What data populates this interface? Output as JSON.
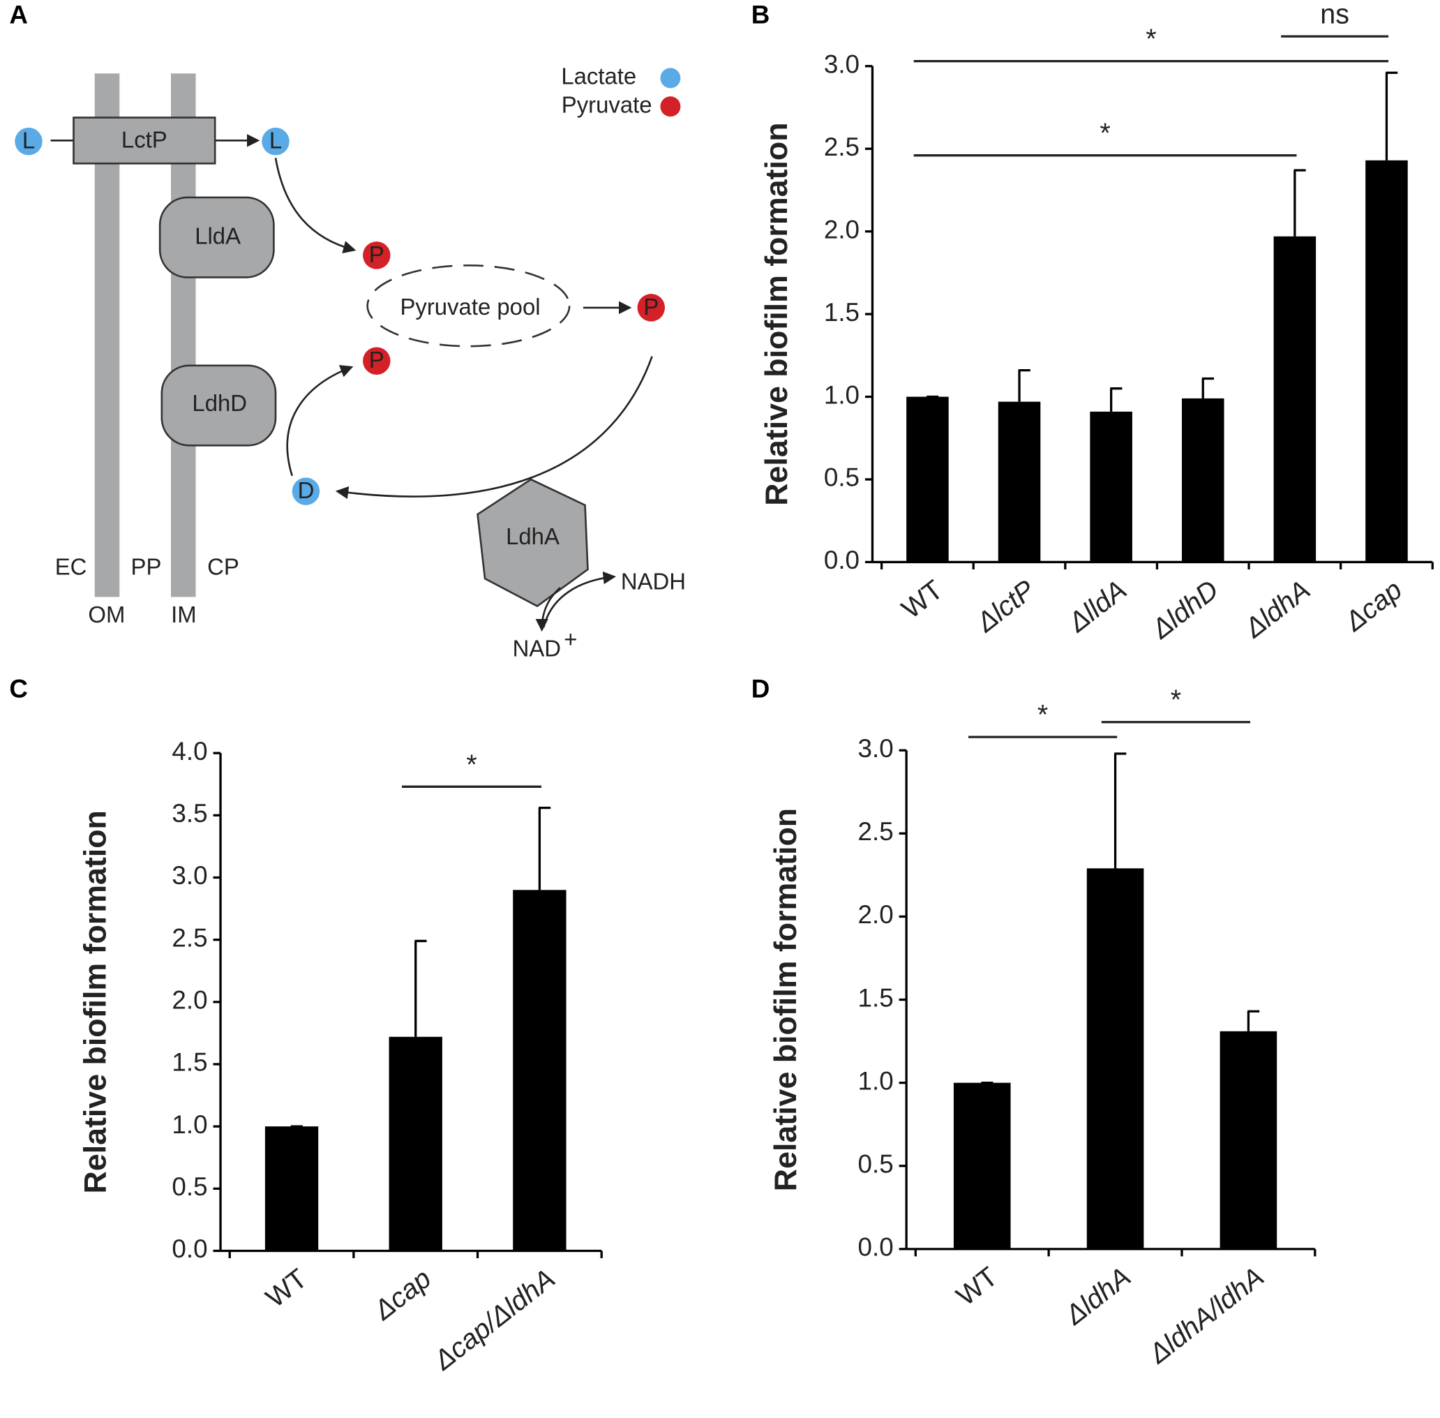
{
  "diagram": {
    "panel_label": "A",
    "legend": [
      "Lactate",
      "Pyruvate"
    ],
    "transporter": "LctP",
    "enzymes": [
      "LldA",
      "LdhD",
      "LdhA"
    ],
    "lactate_marks": [
      "L",
      "L",
      "D"
    ],
    "pyruvate_marks": [
      "P",
      "P",
      "P"
    ],
    "pool": "Pyruvate pool",
    "compartments": [
      "EC",
      "PP",
      "CP"
    ],
    "membranes": [
      "OM",
      "IM"
    ],
    "cofactors": [
      "NADH",
      "NAD"
    ],
    "cofactor_charge": "+"
  },
  "chart_data": [
    {
      "type": "bar",
      "panel_label": "B",
      "ylabel": "Relative biofilm formation",
      "categories": [
        "WT",
        "ΔlctP",
        "ΔlldA",
        "ΔldhD",
        "ΔldhA",
        "Δcap"
      ],
      "values": [
        1.0,
        0.97,
        0.91,
        0.99,
        1.97,
        2.43
      ],
      "errors": [
        0,
        0.19,
        0.14,
        0.12,
        0.4,
        0.53
      ],
      "color": "#000000",
      "ylim": [
        0,
        3
      ],
      "yticks": [
        {
          "value": 0,
          "label": "0.0"
        },
        0.5,
        {
          "value": 1,
          "label": "1.0"
        },
        1.5,
        {
          "value": 2,
          "label": "2.0"
        },
        2.5,
        {
          "value": 3,
          "label": "3.0"
        }
      ],
      "annotations": [
        {
          "text": "*",
          "from": 0,
          "to": 5,
          "y": 3.03
        },
        {
          "text": "ns",
          "from": 4,
          "to": 5,
          "y": 3.18
        },
        {
          "text": "*",
          "from": 0,
          "to": 4,
          "y": 2.46
        }
      ]
    },
    {
      "type": "bar",
      "panel_label": "C",
      "ylabel": "Relative biofilm formation",
      "categories": [
        "WT",
        "Δcap",
        "Δcap/ΔldhA"
      ],
      "values": [
        1.0,
        1.72,
        2.9
      ],
      "errors": [
        0,
        0.77,
        0.66
      ],
      "color": "#000000",
      "ylim": [
        0,
        4
      ],
      "yticks": [
        {
          "value": 0,
          "label": "0.0"
        },
        0.5,
        {
          "value": 1,
          "label": "1.0"
        },
        1.5,
        {
          "value": 2,
          "label": "2.0"
        },
        2.5,
        {
          "value": 3,
          "label": "3.0"
        },
        3.5,
        {
          "value": 4,
          "label": "4.0"
        }
      ],
      "annotations": [
        {
          "text": "*",
          "from": 1,
          "to": 2,
          "y": 3.73
        }
      ]
    },
    {
      "type": "bar",
      "panel_label": "D",
      "ylabel": "Relative biofilm formation",
      "categories": [
        "WT",
        "ΔldhA",
        "ΔldhA/ldhA"
      ],
      "values": [
        1.0,
        2.29,
        1.31
      ],
      "errors": [
        0,
        0.69,
        0.12
      ],
      "color": "#000000",
      "ylim": [
        0,
        3
      ],
      "yticks": [
        {
          "value": 0,
          "label": "0.0"
        },
        0.5,
        {
          "value": 1,
          "label": "1.0"
        },
        1.5,
        {
          "value": 2,
          "label": "2.0"
        },
        2.5,
        {
          "value": 3,
          "label": "3.0"
        }
      ],
      "annotations": [
        {
          "text": "*",
          "from": 0,
          "to": 1,
          "y": 3.08
        },
        {
          "text": "*",
          "from": 1,
          "to": 2,
          "y": 3.17
        }
      ]
    }
  ]
}
